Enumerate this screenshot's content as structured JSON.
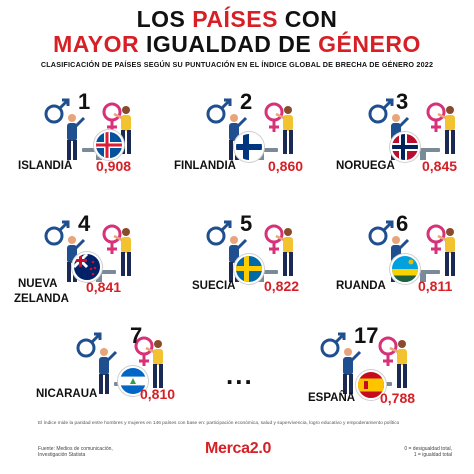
{
  "title_line1_a": "LOS",
  "title_line1_b": "PAÍSES",
  "title_line1_c": "CON",
  "title_line2_a": "MAYOR",
  "title_line2_b": "IGUALDAD DE",
  "title_line2_c": "GÉNERO",
  "subtitle": "CLASIFICACIÓN DE PAÍSES SEGÚN SU PUNTUACIÓN EN EL ÍNDICE GLOBAL DE BRECHA DE GÉNERO 2022",
  "countries": [
    {
      "rank": "1",
      "name": "ISLANDIA",
      "score": "0,908",
      "flag": "iceland"
    },
    {
      "rank": "2",
      "name": "FINLANDIA",
      "score": "0,860",
      "flag": "finland"
    },
    {
      "rank": "3",
      "name": "NORUEGA",
      "score": "0,845",
      "flag": "norway"
    },
    {
      "rank": "4",
      "name_line1": "NUEVA",
      "name_line2": "ZELANDA",
      "score": "0,841",
      "flag": "new-zealand"
    },
    {
      "rank": "5",
      "name": "SUECIA",
      "score": "0,822",
      "flag": "sweden"
    },
    {
      "rank": "6",
      "name": "RUANDA",
      "score": "0,811",
      "flag": "rwanda"
    },
    {
      "rank": "7",
      "name": "NICARAUA",
      "score": "0,810",
      "flag": "nicaragua"
    },
    {
      "rank": "17",
      "name": "ESPAÑA",
      "score": "0,788",
      "flag": "spain"
    }
  ],
  "ellipsis": "...",
  "footnote": "El índice mide la paridad entre hombres y mujeres en 146 países con base en: participación económica, salud y supervivencia, logro educativo y empoderamiento político",
  "source_line1": "Fuente: Medios de comunicación,",
  "source_line2": "Investigación Statista",
  "legend_line1": "0 = desigualdad total,",
  "legend_line2": "1 = igualdad total",
  "logo_text": "Merca2.0",
  "colors": {
    "accent": "#d71f26",
    "male": "#1f4f8f",
    "female": "#d7317a",
    "skin": "#e8a47a",
    "pants": "#1b2a55",
    "shirt_w": "#f2c230"
  }
}
